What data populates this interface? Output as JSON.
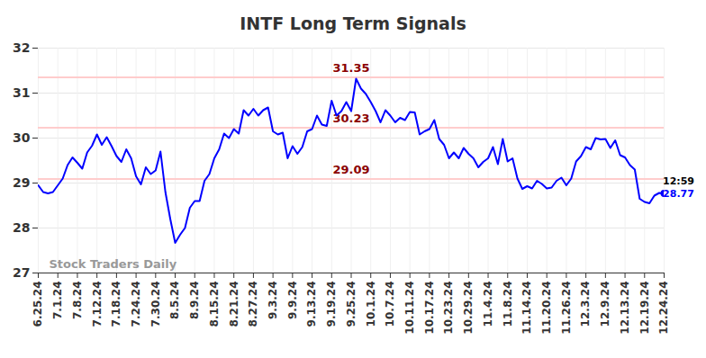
{
  "chart_data": {
    "type": "line",
    "title": "INTF Long Term Signals",
    "color": "#0000ff",
    "grid": true,
    "categories": [
      "6.25.24",
      null,
      null,
      null,
      "7.1.24",
      null,
      null,
      null,
      "7.8.24",
      null,
      null,
      null,
      "7.12.24",
      null,
      null,
      null,
      "7.18.24",
      null,
      null,
      null,
      "7.24.24",
      null,
      null,
      null,
      "7.30.24",
      null,
      null,
      null,
      "8.5.24",
      null,
      null,
      null,
      "8.9.24",
      null,
      null,
      null,
      "8.15.24",
      null,
      null,
      null,
      "8.21.24",
      null,
      null,
      null,
      "8.27.24",
      null,
      null,
      null,
      "9.3.24",
      null,
      null,
      null,
      "9.9.24",
      null,
      null,
      null,
      "9.13.24",
      null,
      null,
      null,
      "9.19.24",
      null,
      null,
      null,
      "9.25.24",
      null,
      null,
      null,
      "10.1.24",
      null,
      null,
      null,
      "10.7.24",
      null,
      null,
      null,
      "10.11.24",
      null,
      null,
      null,
      "10.17.24",
      null,
      null,
      null,
      "10.23.24",
      null,
      null,
      null,
      "10.29.24",
      null,
      null,
      null,
      "11.4.24",
      null,
      null,
      null,
      "11.8.24",
      null,
      null,
      null,
      "11.14.24",
      null,
      null,
      null,
      "11.20.24",
      null,
      null,
      null,
      "11.26.24",
      null,
      null,
      null,
      "12.3.24",
      null,
      null,
      null,
      "12.9.24",
      null,
      null,
      null,
      "12.13.24",
      null,
      null,
      null,
      "12.19.24",
      null,
      null,
      null,
      "12.24.24"
    ],
    "values": [
      28.95,
      28.8,
      28.77,
      28.8,
      28.95,
      29.1,
      29.4,
      29.57,
      29.45,
      29.32,
      29.68,
      29.83,
      30.08,
      29.85,
      30.02,
      29.82,
      29.6,
      29.47,
      29.75,
      29.55,
      29.15,
      28.97,
      29.35,
      29.2,
      29.28,
      29.7,
      28.8,
      28.2,
      27.67,
      27.85,
      28.0,
      28.45,
      28.6,
      28.6,
      29.05,
      29.2,
      29.55,
      29.75,
      30.1,
      30.0,
      30.2,
      30.1,
      30.62,
      30.5,
      30.65,
      30.5,
      30.62,
      30.68,
      30.15,
      30.08,
      30.12,
      29.55,
      29.82,
      29.65,
      29.8,
      30.15,
      30.2,
      30.5,
      30.3,
      30.27,
      30.83,
      30.5,
      30.6,
      30.8,
      30.6,
      31.32,
      31.1,
      30.98,
      30.8,
      30.6,
      30.35,
      30.62,
      30.5,
      30.35,
      30.45,
      30.4,
      30.58,
      30.57,
      30.08,
      30.15,
      30.2,
      30.4,
      29.98,
      29.85,
      29.55,
      29.68,
      29.55,
      29.78,
      29.65,
      29.55,
      29.35,
      29.47,
      29.55,
      29.8,
      29.42,
      29.98,
      29.48,
      29.55,
      29.1,
      28.87,
      28.93,
      28.88,
      29.05,
      28.98,
      28.88,
      28.9,
      29.05,
      29.12,
      28.95,
      29.1,
      29.48,
      29.6,
      29.8,
      29.75,
      30.0,
      29.97,
      29.98,
      29.78,
      29.95,
      29.62,
      29.57,
      29.4,
      29.3,
      28.65,
      28.58,
      28.55,
      28.72,
      28.78,
      28.77
    ],
    "ylim": [
      27,
      32
    ],
    "yticks": [
      27,
      28,
      29,
      30,
      31,
      32
    ],
    "levels": [
      {
        "value": 31.35,
        "label": "31.35"
      },
      {
        "value": 30.23,
        "label": "30.23"
      },
      {
        "value": 29.09,
        "label": "29.09"
      }
    ],
    "last_point": {
      "time_label": "12:59",
      "value": 28.77,
      "label": "28.77"
    },
    "watermark": "Stock Traders Daily"
  }
}
